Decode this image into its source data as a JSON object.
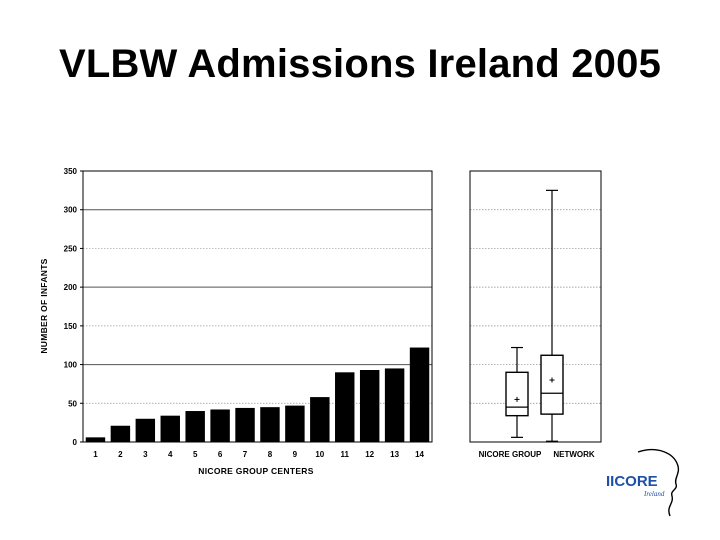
{
  "slide": {
    "title": "VLBW Admissions Ireland 2005"
  },
  "chart_data": [
    {
      "type": "bar",
      "title": "",
      "xlabel": "NICORE GROUP CENTERS",
      "ylabel": "NUMBER OF INFANTS",
      "ylim": [
        0,
        350
      ],
      "yticks": [
        0,
        50,
        100,
        150,
        200,
        250,
        300,
        350
      ],
      "grid": true,
      "categories": [
        "1",
        "2",
        "3",
        "4",
        "5",
        "6",
        "7",
        "8",
        "9",
        "10",
        "11",
        "12",
        "13",
        "14"
      ],
      "values": [
        6,
        21,
        30,
        34,
        40,
        42,
        44,
        45,
        47,
        58,
        90,
        93,
        95,
        122
      ],
      "bar_color": "#000000"
    },
    {
      "type": "boxplot",
      "title": "",
      "ylim": [
        0,
        350
      ],
      "grid": true,
      "categories": [
        "NICORE GROUP",
        "NETWORK"
      ],
      "boxes": [
        {
          "name": "NICORE GROUP",
          "min": 6,
          "q1": 34,
          "median": 45,
          "q3": 90,
          "max": 122,
          "mean": 55
        },
        {
          "name": "NETWORK",
          "min": 1,
          "q1": 36,
          "median": 63,
          "q3": 112,
          "max": 325,
          "mean": 80
        }
      ]
    }
  ],
  "logo": {
    "word": "IICORE",
    "sub": "Ireland"
  }
}
